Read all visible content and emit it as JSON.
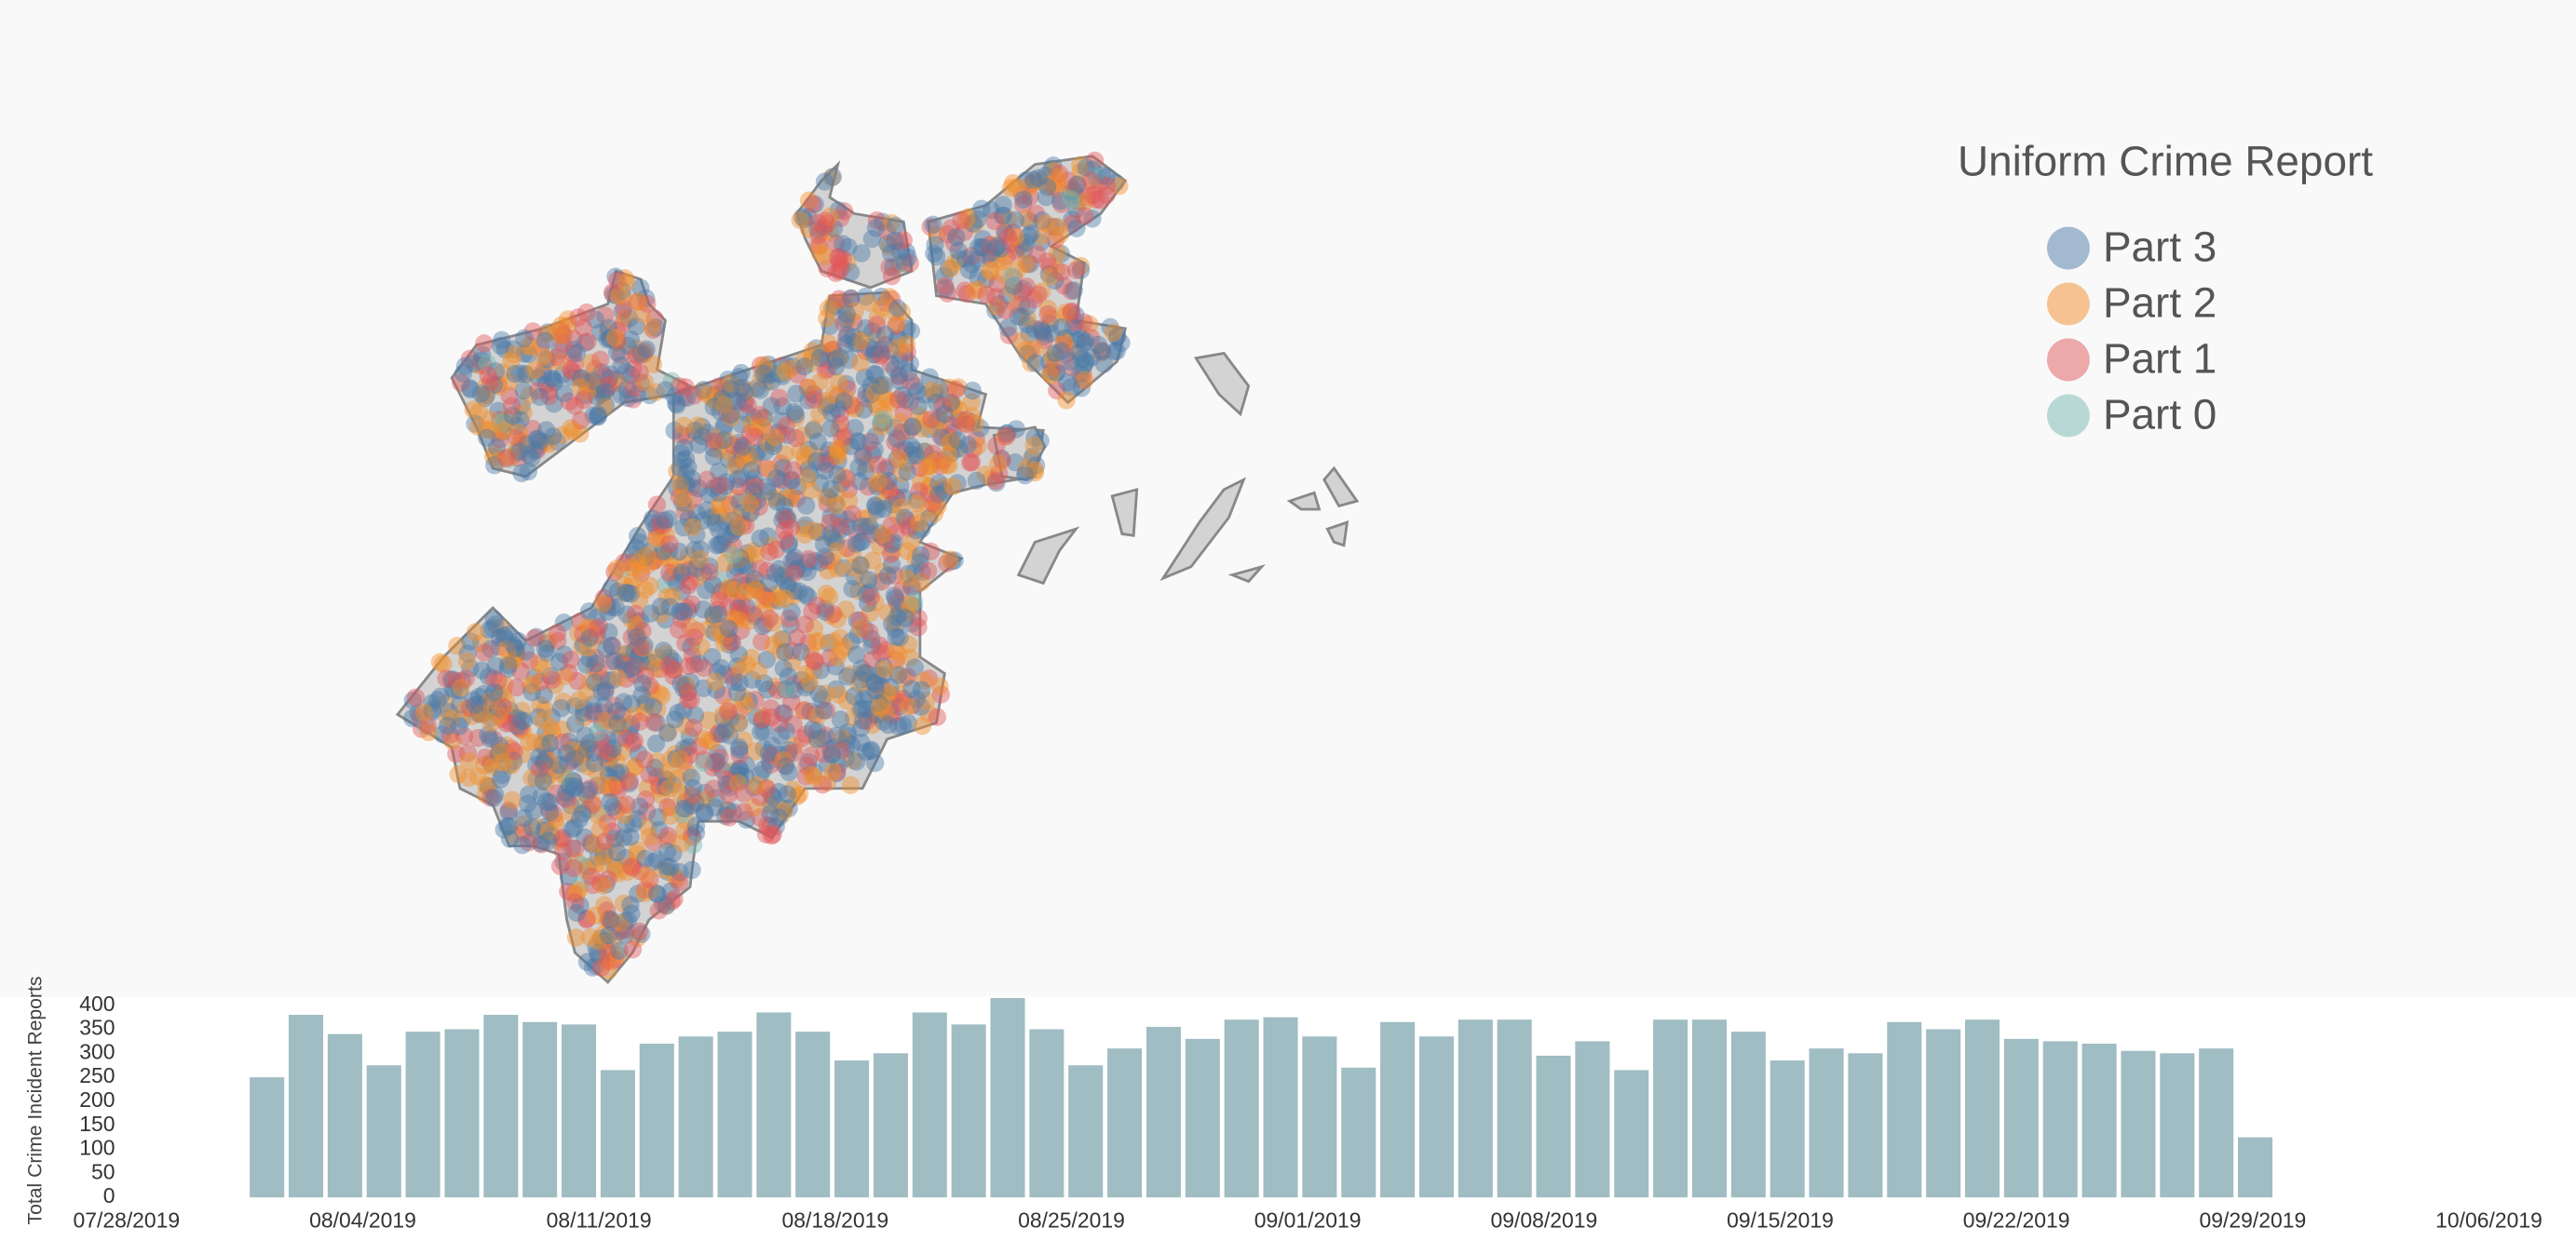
{
  "legend": {
    "title": "Uniform Crime Report",
    "items": [
      {
        "name": "Part 3",
        "color": "#4e79a7"
      },
      {
        "name": "Part 2",
        "color": "#f28e2b"
      },
      {
        "name": "Part 1",
        "color": "#e15759"
      },
      {
        "name": "Part 0",
        "color": "#76b7b2"
      }
    ]
  },
  "chart_data": {
    "type": "bar",
    "y_label": "Total Crime Incident Reports",
    "color": "#9fbdc2",
    "values": [
      250,
      380,
      340,
      275,
      345,
      350,
      380,
      365,
      360,
      265,
      320,
      335,
      345,
      385,
      345,
      285,
      300,
      385,
      360,
      415,
      350,
      275,
      310,
      355,
      330,
      370,
      375,
      335,
      270,
      365,
      335,
      370,
      370,
      295,
      325,
      265,
      370,
      370,
      345,
      285,
      310,
      300,
      365,
      350,
      370,
      330,
      325,
      320,
      305,
      300,
      310,
      125
    ],
    "ylim": [
      0,
      400
    ],
    "yticks": [
      0,
      50,
      100,
      150,
      200,
      250,
      300,
      350,
      400
    ],
    "xticks": [
      "07/28/2019",
      "08/04/2019",
      "08/11/2019",
      "08/18/2019",
      "08/25/2019",
      "09/01/2019",
      "09/08/2019",
      "09/15/2019",
      "09/22/2019",
      "09/29/2019",
      "10/06/2019"
    ]
  }
}
